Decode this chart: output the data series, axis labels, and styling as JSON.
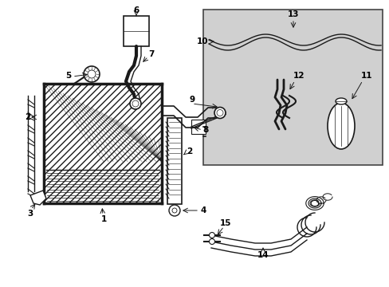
{
  "bg_color": "#ffffff",
  "line_color": "#1a1a1a",
  "gray_bg": "#d0d0d0",
  "fig_w": 4.89,
  "fig_h": 3.6,
  "dpi": 100
}
